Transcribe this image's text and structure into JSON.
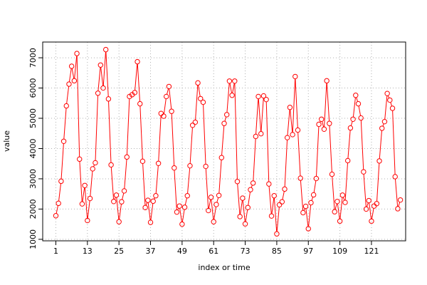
{
  "chart_data": {
    "type": "line",
    "title": "",
    "xlabel": "index or time",
    "ylabel": "value",
    "xlim": [
      -4,
      134
    ],
    "ylim": [
      950,
      7520
    ],
    "xticks": [
      1,
      13,
      25,
      37,
      49,
      61,
      73,
      85,
      97,
      109,
      121
    ],
    "yticks": [
      1000,
      2000,
      3000,
      4000,
      5000,
      6000,
      7000
    ],
    "grid": true,
    "series": [
      {
        "color": "#ff0000",
        "marker": "open-circle",
        "values": [
          1780,
          2190,
          2920,
          4240,
          5410,
          6130,
          6720,
          6240,
          7140,
          3650,
          2170,
          2780,
          1620,
          2350,
          3330,
          3530,
          5830,
          6760,
          6000,
          7270,
          5640,
          3460,
          2250,
          2460,
          1580,
          2240,
          2600,
          3720,
          5720,
          5780,
          5850,
          6870,
          5480,
          3580,
          2050,
          2290,
          1560,
          2260,
          2440,
          3510,
          5160,
          5070,
          5720,
          6050,
          5230,
          3360,
          1900,
          2100,
          1500,
          2060,
          2440,
          3430,
          4770,
          4870,
          6170,
          5650,
          5530,
          3410,
          1950,
          2390,
          1580,
          2150,
          2450,
          3700,
          4830,
          5120,
          6230,
          5760,
          6230,
          2910,
          1750,
          2360,
          1510,
          2050,
          2640,
          2860,
          4400,
          5720,
          4490,
          5740,
          5620,
          2830,
          1770,
          2440,
          1180,
          2140,
          2240,
          2660,
          4360,
          5360,
          4460,
          6380,
          4610,
          3020,
          1880,
          2090,
          1350,
          2210,
          2470,
          3010,
          4800,
          4970,
          4640,
          6240,
          4830,
          3150,
          1910,
          2250,
          1600,
          2460,
          2220,
          3600,
          4680,
          4970,
          5760,
          5480,
          5010,
          3230,
          2000,
          2280,
          1600,
          2100,
          2180,
          3590,
          4670,
          4890,
          5820,
          5600,
          5330,
          3070,
          2010,
          2300
        ]
      }
    ]
  }
}
